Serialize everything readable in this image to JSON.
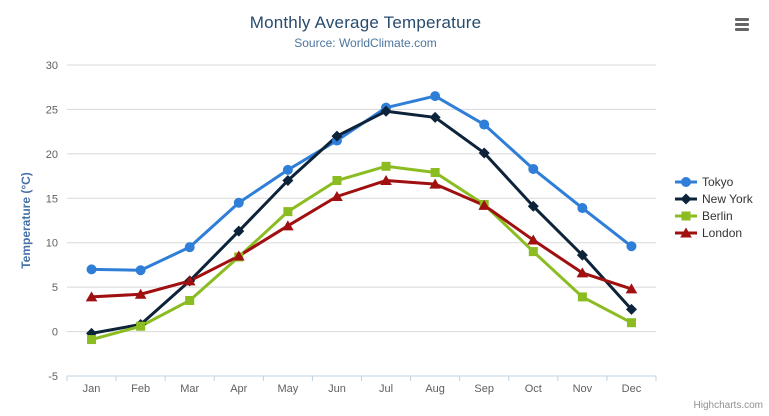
{
  "chart_data": {
    "type": "line",
    "title": "Monthly Average Temperature",
    "subtitle": "Source: WorldClimate.com",
    "xlabel": "",
    "ylabel": "Temperature (°C)",
    "categories": [
      "Jan",
      "Feb",
      "Mar",
      "Apr",
      "May",
      "Jun",
      "Jul",
      "Aug",
      "Sep",
      "Oct",
      "Nov",
      "Dec"
    ],
    "ylim": [
      -5,
      30
    ],
    "yticks": [
      -5,
      0,
      5,
      10,
      15,
      20,
      25,
      30
    ],
    "grid": true,
    "legend_position": "right",
    "series": [
      {
        "name": "Tokyo",
        "marker": "circle",
        "color": "#2f7ed8",
        "values": [
          7.0,
          6.9,
          9.5,
          14.5,
          18.2,
          21.5,
          25.2,
          26.5,
          23.3,
          18.3,
          13.9,
          9.6
        ]
      },
      {
        "name": "New York",
        "marker": "diamond",
        "color": "#0d233a",
        "values": [
          -0.2,
          0.8,
          5.7,
          11.3,
          17.0,
          22.0,
          24.8,
          24.1,
          20.1,
          14.1,
          8.6,
          2.5
        ]
      },
      {
        "name": "Berlin",
        "marker": "square",
        "color": "#8bbc21",
        "values": [
          -0.9,
          0.6,
          3.5,
          8.4,
          13.5,
          17.0,
          18.6,
          17.9,
          14.3,
          9.0,
          3.9,
          1.0
        ]
      },
      {
        "name": "London",
        "marker": "triangle",
        "color": "#a01010",
        "values": [
          3.9,
          4.2,
          5.7,
          8.5,
          11.9,
          15.2,
          17.0,
          16.6,
          14.2,
          10.3,
          6.6,
          4.8
        ]
      }
    ],
    "style": {
      "grid_color": "#d8d8d8",
      "axis_line_color": "#c0d0e0",
      "tick_label_color": "#606060",
      "axis_title_color": "#4572a7",
      "title_color": "#274b6d",
      "subtitle_color": "#4d759e",
      "legend_text_color": "#333333"
    }
  },
  "credits": {
    "label": "Highcharts.com"
  }
}
